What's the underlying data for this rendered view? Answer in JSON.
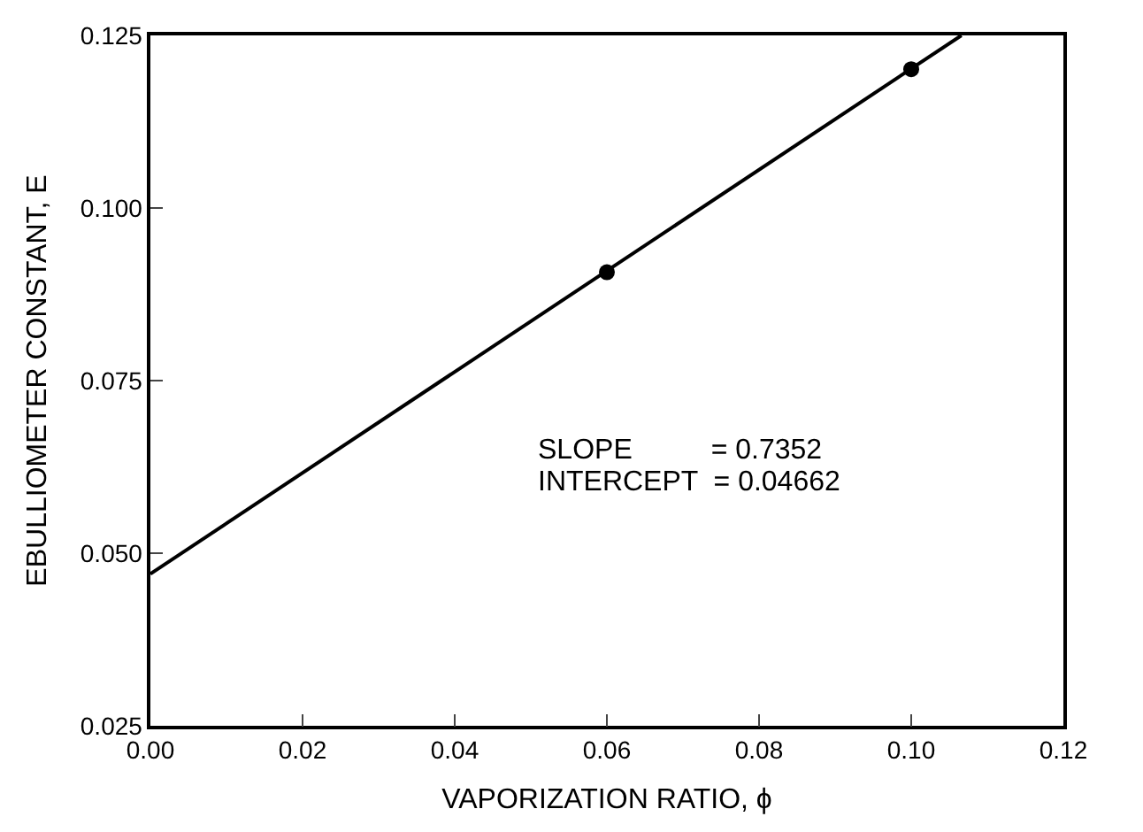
{
  "chart_data": {
    "type": "scatter",
    "xlabel": "VAPORIZATION RATIO, ϕ",
    "ylabel": "EBULLIOMETER CONSTANT, E",
    "series": [
      {
        "color": "#000000",
        "x": [
          0.06,
          0.1
        ],
        "values": [
          0.0907,
          0.1201
        ],
        "marker": "circle"
      },
      {
        "type": "line",
        "color": "#000000",
        "x": [
          0.0,
          0.1066
        ],
        "values": [
          0.047,
          0.125
        ],
        "line_style": "solid"
      }
    ],
    "xlim": [
      0.0,
      0.12
    ],
    "xticks": [
      {
        "value": 0.0,
        "label": "0.00"
      },
      0.02,
      0.04,
      0.06,
      0.08,
      {
        "value": 0.1,
        "label": "0.10"
      },
      {
        "value": 0.12,
        "label": "0.12"
      }
    ],
    "ylim": [
      0.025,
      0.125
    ],
    "yticks": [
      0.025,
      {
        "value": 0.05,
        "label": "0.050"
      },
      0.075,
      {
        "value": 0.1,
        "label": "0.100"
      },
      0.125
    ],
    "annotations": [
      "SLOPE          = 0.7352",
      "INTERCEPT  = 0.04662"
    ]
  }
}
